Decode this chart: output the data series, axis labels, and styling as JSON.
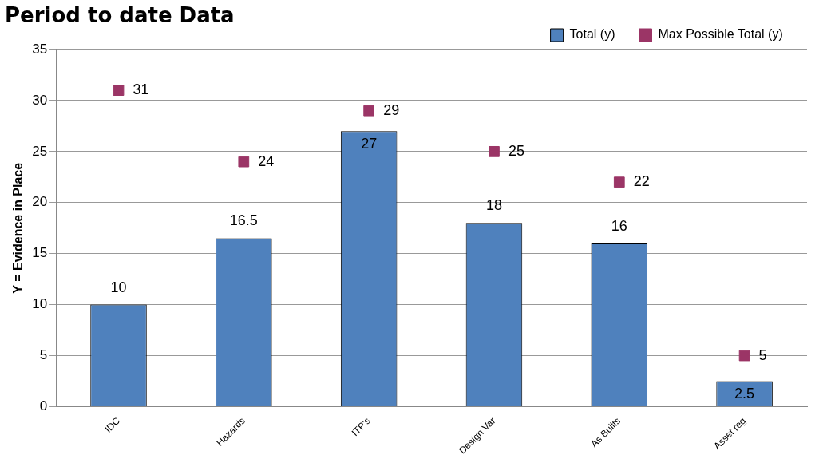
{
  "chart_data": {
    "type": "bar",
    "title": "Period to date Data",
    "ylabel": "Y = Evidence in Place",
    "categories": [
      "IDC",
      "Hazards",
      "ITP's",
      "Design Var",
      "As Builts",
      "Asset reg"
    ],
    "series": [
      {
        "name": "Total (y)",
        "color": "#4f81bd",
        "values": [
          10,
          16.5,
          27,
          18,
          16,
          2.5
        ]
      },
      {
        "name": "Max Possible Total (y)",
        "type": "scatter",
        "color": "#9b3566",
        "x": [
          "IDC",
          "Hazards",
          "ITP's",
          "Design Var",
          "As Builts",
          "Asset reg"
        ],
        "values": [
          31,
          24,
          29,
          25,
          22,
          5
        ]
      }
    ],
    "ylim": [
      0,
      35
    ],
    "yticks": [
      0,
      5,
      10,
      15,
      20,
      25,
      30,
      35
    ],
    "grid": "y",
    "legend": "top right",
    "marker": "square",
    "data_labels": true
  }
}
